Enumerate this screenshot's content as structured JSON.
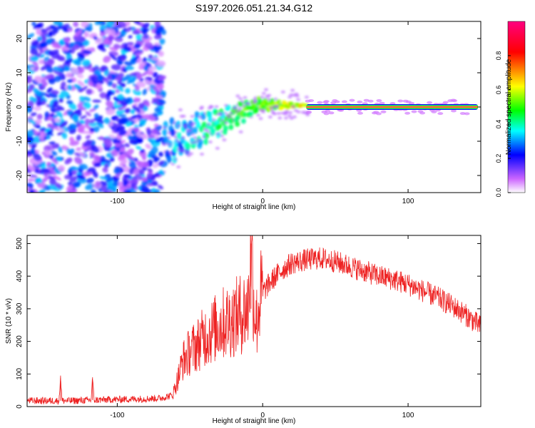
{
  "title": "S197.2026.051.21.34.G12",
  "chart_data": [
    {
      "type": "heatmap",
      "xlabel": "Height of straight line (km)",
      "ylabel": "Frequency (Hz)",
      "xlim": [
        -162,
        150
      ],
      "ylim": [
        -25,
        25
      ],
      "xticks": [
        -100,
        0,
        100
      ],
      "yticks": [
        -20,
        -10,
        0,
        10,
        20
      ],
      "colorbar": {
        "label": "Normalized spectral amplitude",
        "range": [
          0,
          1
        ],
        "ticks": [
          0.0,
          0.2,
          0.4,
          0.6,
          0.8
        ],
        "tick_labels": [
          "0.0",
          "0.2",
          "0.4",
          "0.6",
          "0.8"
        ],
        "colors": [
          "#ffffff",
          "#cc66ff",
          "#0000ff",
          "#00ffff",
          "#00ff00",
          "#ffff00",
          "#ff0000",
          "#ff0080"
        ]
      },
      "features": {
        "noise_region_x": [
          -162,
          -68
        ],
        "noise_amplitude": 0.2,
        "transition_x": [
          -68,
          30
        ],
        "transition_freq_start": -11,
        "transition_freq_end": 0.5,
        "tone_x": [
          30,
          148
        ],
        "tone_freq": 0,
        "tone_amplitude": 0.95
      }
    },
    {
      "type": "line",
      "xlabel": "Height of straight line (km)",
      "ylabel": "SNR (10 * v/v)",
      "xlim": [
        -162,
        150
      ],
      "ylim": [
        0,
        525
      ],
      "xticks": [
        -100,
        0,
        100
      ],
      "yticks": [
        0,
        100,
        200,
        300,
        400,
        500
      ],
      "color": "#ee2222",
      "series": [
        {
          "name": "SNR",
          "x": [
            -162,
            -140,
            -139,
            -138,
            -130,
            -118,
            -117,
            -116,
            -100,
            -80,
            -70,
            -62,
            -58,
            -55,
            -50,
            -45,
            -40,
            -35,
            -30,
            -25,
            -20,
            -15,
            -10,
            -8,
            -6,
            -4,
            -2,
            0,
            5,
            10,
            15,
            20,
            30,
            40,
            50,
            60,
            70,
            80,
            90,
            100,
            110,
            120,
            130,
            140,
            150
          ],
          "y": [
            18,
            18,
            95,
            18,
            18,
            20,
            90,
            20,
            22,
            24,
            26,
            35,
            90,
            140,
            170,
            190,
            215,
            230,
            250,
            260,
            270,
            285,
            300,
            500,
            310,
            260,
            330,
            350,
            380,
            405,
            425,
            440,
            450,
            455,
            445,
            430,
            415,
            400,
            390,
            375,
            355,
            335,
            310,
            280,
            245
          ]
        }
      ]
    }
  ]
}
